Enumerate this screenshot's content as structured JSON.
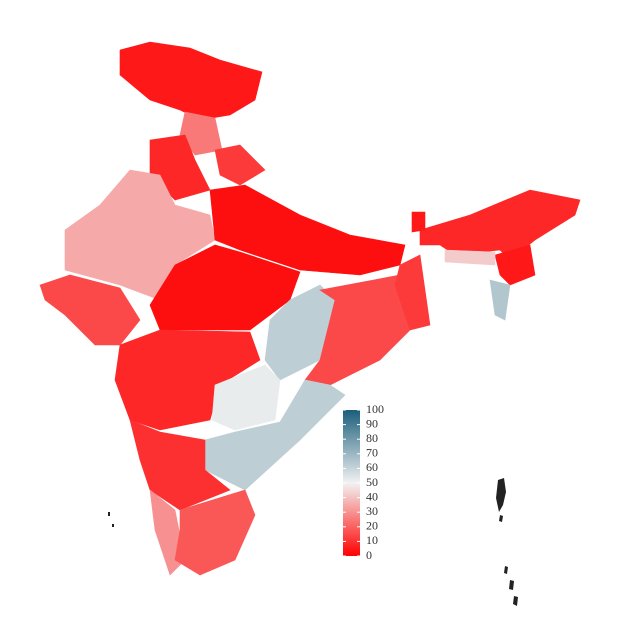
{
  "chart_data": {
    "type": "choropleth",
    "values": [
      5,
      25,
      8,
      12,
      35,
      15,
      3,
      3,
      8,
      62,
      15,
      52,
      62,
      10,
      30,
      18,
      12,
      8,
      5,
      42,
      65,
      5
    ],
    "colorscale": [
      "#ff0000",
      "#f2f2f2",
      "#1b5e7b"
    ],
    "lim": [
      0,
      100
    ],
    "ticks": [
      0,
      10,
      20,
      30,
      40,
      50,
      60,
      70,
      80,
      90,
      100
    ]
  }
}
